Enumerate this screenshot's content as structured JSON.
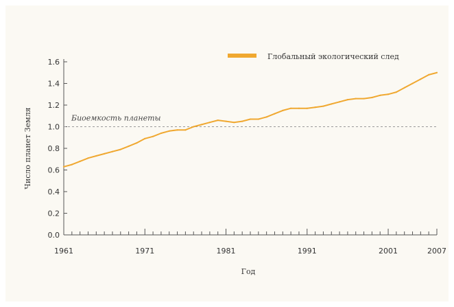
{
  "chart_data": {
    "type": "line",
    "xlabel": "Год",
    "ylabel": "Число планет Земля",
    "xlim": [
      1961,
      2007
    ],
    "ylim": [
      0,
      1.6
    ],
    "x_ticks": [
      "1961",
      "1971",
      "1981",
      "1991",
      "2001",
      "2007"
    ],
    "y_ticks": [
      "0.0",
      "0.2",
      "0.4",
      "0.6",
      "0.8",
      "1.0",
      "1.2",
      "1.4",
      "1.6"
    ],
    "grid": false,
    "legend_position": "top-right",
    "reference_line": {
      "label": "Биоемкость планеты",
      "value": 1.0
    },
    "series": [
      {
        "name": "Глобальный экологический след",
        "color": "#f0a830",
        "x": [
          1961,
          1962,
          1963,
          1964,
          1965,
          1966,
          1967,
          1968,
          1969,
          1970,
          1971,
          1972,
          1973,
          1974,
          1975,
          1976,
          1977,
          1978,
          1979,
          1980,
          1981,
          1982,
          1983,
          1984,
          1985,
          1986,
          1987,
          1988,
          1989,
          1990,
          1991,
          1992,
          1993,
          1994,
          1995,
          1996,
          1997,
          1998,
          1999,
          2000,
          2001,
          2002,
          2003,
          2004,
          2005,
          2006,
          2007
        ],
        "values": [
          0.63,
          0.65,
          0.68,
          0.71,
          0.73,
          0.75,
          0.77,
          0.79,
          0.82,
          0.85,
          0.89,
          0.91,
          0.94,
          0.96,
          0.97,
          0.97,
          1.0,
          1.02,
          1.04,
          1.06,
          1.05,
          1.04,
          1.05,
          1.07,
          1.07,
          1.09,
          1.12,
          1.15,
          1.17,
          1.17,
          1.17,
          1.18,
          1.19,
          1.21,
          1.23,
          1.25,
          1.26,
          1.26,
          1.27,
          1.29,
          1.3,
          1.32,
          1.36,
          1.4,
          1.44,
          1.48,
          1.5
        ]
      }
    ]
  }
}
